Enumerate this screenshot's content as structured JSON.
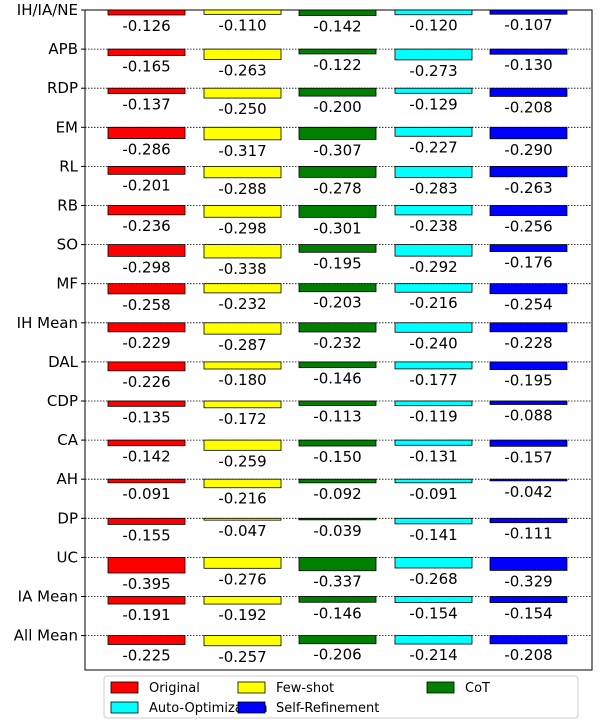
{
  "chart_data": {
    "type": "bar",
    "orientation": "downward-from-baseline",
    "categories": [
      "IH/IA/NE",
      "APB",
      "RDP",
      "EM",
      "RL",
      "RB",
      "SO",
      "MF",
      "IH Mean",
      "DAL",
      "CDP",
      "CA",
      "AH",
      "DP",
      "UC",
      "IA Mean",
      "All Mean"
    ],
    "series": [
      {
        "name": "Original",
        "color": "#ff0000",
        "values": [
          -0.126,
          -0.165,
          -0.137,
          -0.286,
          -0.201,
          -0.236,
          -0.298,
          -0.258,
          -0.229,
          -0.226,
          -0.135,
          -0.142,
          -0.091,
          -0.155,
          -0.395,
          -0.191,
          -0.225
        ],
        "labels": [
          "-0.126",
          "-0.165",
          "-0.137",
          "-0.286",
          "-0.201",
          "-0.236",
          "-0.298",
          "-0.258",
          "-0.229",
          "-0.226",
          "-0.135",
          "-0.142",
          "-0.091",
          "-0.155",
          "-0.395",
          "-0.191",
          "-0.225"
        ]
      },
      {
        "name": "Few-shot",
        "color": "#ffff00",
        "values": [
          -0.11,
          -0.263,
          -0.25,
          -0.317,
          -0.288,
          -0.298,
          -0.338,
          -0.232,
          -0.287,
          -0.18,
          -0.172,
          -0.259,
          -0.216,
          -0.047,
          -0.276,
          -0.192,
          -0.257
        ],
        "labels": [
          "-0.110",
          "-0.263",
          "-0.250",
          "-0.317",
          "-0.288",
          "-0.298",
          "-0.338",
          "-0.232",
          "-0.287",
          "-0.180",
          "-0.172",
          "-0.259",
          "-0.216",
          "-0.047",
          "-0.276",
          "-0.192",
          "-0.257"
        ]
      },
      {
        "name": "CoT",
        "color": "#008000",
        "values": [
          -0.142,
          -0.122,
          -0.2,
          -0.307,
          -0.278,
          -0.301,
          -0.195,
          -0.203,
          -0.232,
          -0.146,
          -0.113,
          -0.15,
          -0.092,
          -0.039,
          -0.337,
          -0.146,
          -0.206
        ],
        "labels": [
          "-0.142",
          "-0.122",
          "-0.200",
          "-0.307",
          "-0.278",
          "-0.301",
          "-0.195",
          "-0.203",
          "-0.232",
          "-0.146",
          "-0.113",
          "-0.150",
          "-0.092",
          "-0.039",
          "-0.337",
          "-0.146",
          "-0.206"
        ]
      },
      {
        "name": "Auto-Optimization",
        "color": "#00ffff",
        "values": [
          -0.12,
          -0.273,
          -0.129,
          -0.227,
          -0.283,
          -0.238,
          -0.292,
          -0.216,
          -0.24,
          -0.177,
          -0.119,
          -0.131,
          -0.091,
          -0.141,
          -0.268,
          -0.154,
          -0.214
        ],
        "labels": [
          "-0.120",
          "-0.273",
          "-0.129",
          "-0.227",
          "-0.283",
          "-0.238",
          "-0.292",
          "-0.216",
          "-0.240",
          "-0.177",
          "-0.119",
          "-0.131",
          "-0.091",
          "-0.141",
          "-0.268",
          "-0.154",
          "-0.214"
        ]
      },
      {
        "name": "Self-Refinement",
        "color": "#0000ff",
        "values": [
          -0.107,
          -0.13,
          -0.208,
          -0.29,
          -0.263,
          -0.256,
          -0.176,
          -0.254,
          -0.228,
          -0.195,
          -0.088,
          -0.157,
          -0.042,
          -0.111,
          -0.329,
          -0.154,
          -0.208
        ],
        "labels": [
          "-0.107",
          "-0.130",
          "-0.208",
          "-0.290",
          "-0.263",
          "-0.256",
          "-0.176",
          "-0.254",
          "-0.228",
          "-0.195",
          "-0.088",
          "-0.157",
          "-0.042",
          "-0.111",
          "-0.329",
          "-0.154",
          "-0.208"
        ]
      }
    ],
    "title": "",
    "xlabel": "",
    "ylabel": "",
    "grid": false,
    "legend": {
      "placement": "bottom",
      "columns": 3
    }
  }
}
